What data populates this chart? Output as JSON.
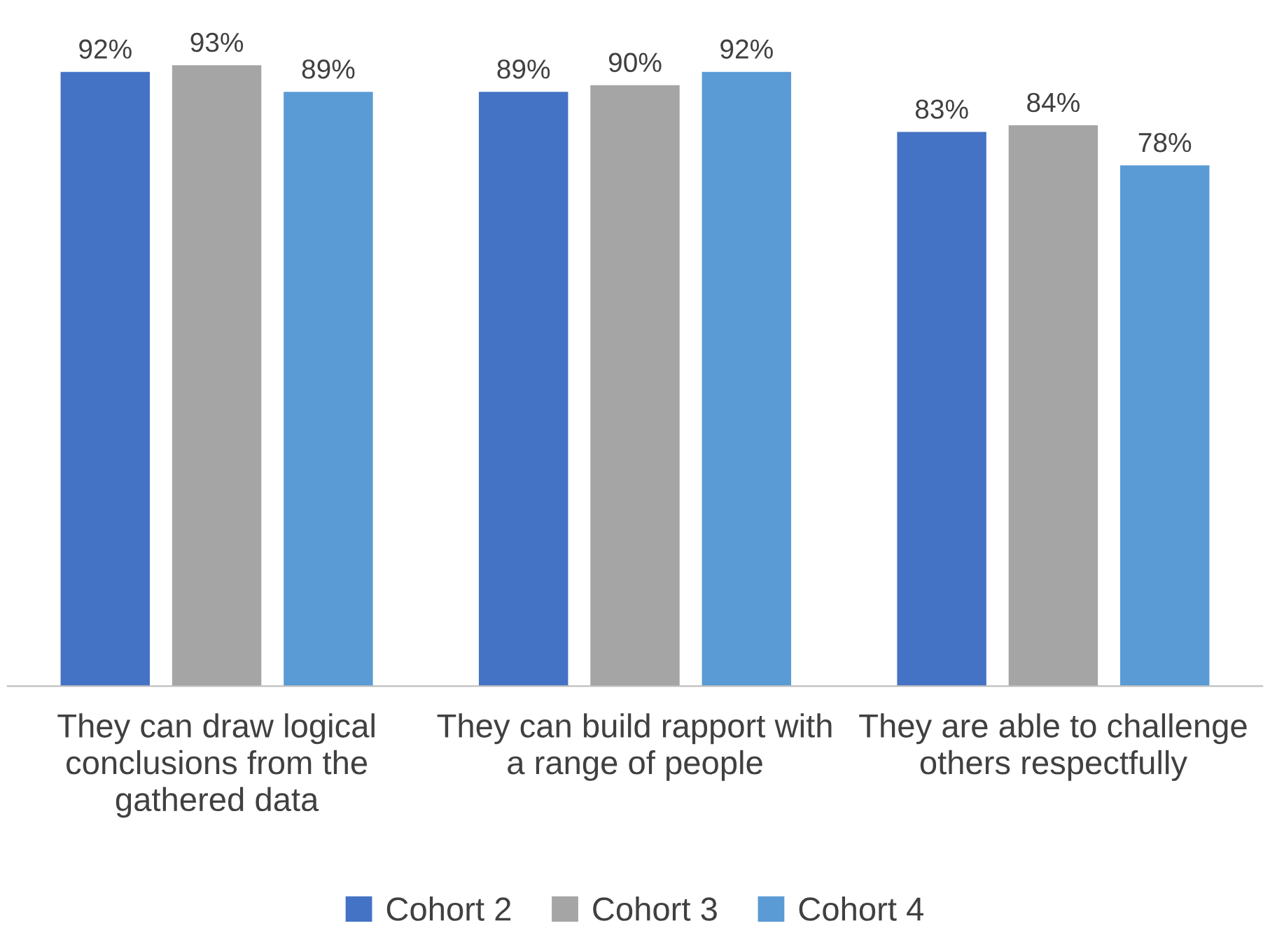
{
  "chart_data": {
    "type": "bar",
    "categories": [
      "They can draw logical conclusions from the gathered data",
      "They can build rapport with a range of people",
      "They are able to challenge others respectfully"
    ],
    "series": [
      {
        "name": "Cohort 2",
        "color": "#4472c4",
        "values": [
          92,
          89,
          83
        ],
        "value_labels": [
          "92%",
          "89%",
          "83%"
        ]
      },
      {
        "name": "Cohort 3",
        "color": "#a5a5a5",
        "values": [
          93,
          90,
          84
        ],
        "value_labels": [
          "93%",
          "90%",
          "84%"
        ]
      },
      {
        "name": "Cohort 4",
        "color": "#5b9bd5",
        "values": [
          89,
          92,
          78
        ],
        "value_labels": [
          "89%",
          "92%",
          "78%"
        ]
      }
    ],
    "tick_labels": "x",
    "grid": false,
    "legend": "bottom"
  }
}
